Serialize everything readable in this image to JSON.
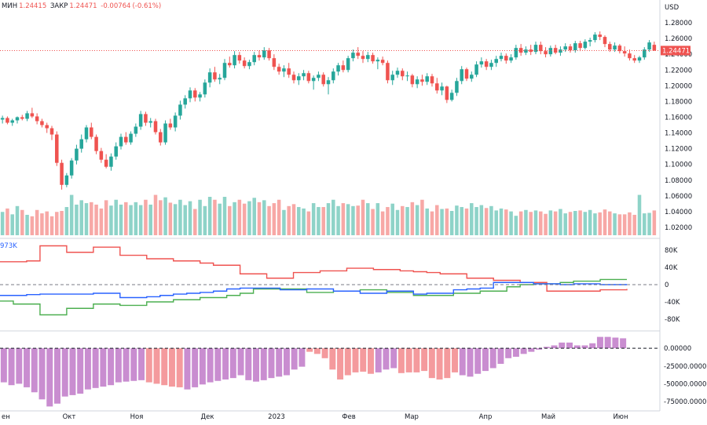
{
  "chart_data": {
    "type": "candlestick",
    "currency_label": "USD",
    "ohlc": {
      "low_label": "МИН",
      "low": "1.24415",
      "close_label": "ЗАКР",
      "close": "1.24471",
      "change": "-0.00764",
      "change_pct": "(-0.61%)"
    },
    "price_badge": "1.24471",
    "price_ticks": [
      "1.28000",
      "1.26000",
      "1.24000",
      "1.22000",
      "1.20000",
      "1.18000",
      "1.16000",
      "1.14000",
      "1.12000",
      "1.10000",
      "1.08000",
      "1.06000",
      "1.04000",
      "1.02000"
    ],
    "cot_ticks": [
      "80K",
      "40K",
      "0",
      "-40K",
      "-80K"
    ],
    "cot_legend": "973K",
    "net_ticks": [
      "0.00000",
      "-25000.00000",
      "-50000.00000",
      "-75000.00000"
    ],
    "x_labels": [
      "ен",
      "Окт",
      "Ноя",
      "Дек",
      "2023",
      "Фев",
      "Мар",
      "Апр",
      "Май",
      "Июн"
    ],
    "ylim_price": [
      1.01,
      1.291
    ],
    "ylim_cot": [
      -100,
      100
    ],
    "ylim_net": [
      -86000,
      20000
    ],
    "candles": [
      [
        1.157,
        1.162,
        1.152,
        1.159
      ],
      [
        1.159,
        1.161,
        1.151,
        1.153
      ],
      [
        1.153,
        1.158,
        1.149,
        1.156
      ],
      [
        1.156,
        1.161,
        1.152,
        1.16
      ],
      [
        1.16,
        1.163,
        1.156,
        1.158
      ],
      [
        1.158,
        1.168,
        1.155,
        1.165
      ],
      [
        1.165,
        1.172,
        1.159,
        1.161
      ],
      [
        1.161,
        1.165,
        1.151,
        1.155
      ],
      [
        1.155,
        1.158,
        1.147,
        1.15
      ],
      [
        1.15,
        1.153,
        1.14,
        1.146
      ],
      [
        1.146,
        1.149,
        1.131,
        1.138
      ],
      [
        1.138,
        1.142,
        1.098,
        1.102
      ],
      [
        1.102,
        1.106,
        1.068,
        1.074
      ],
      [
        1.074,
        1.089,
        1.071,
        1.086
      ],
      [
        1.086,
        1.108,
        1.082,
        1.105
      ],
      [
        1.105,
        1.125,
        1.1,
        1.12
      ],
      [
        1.12,
        1.138,
        1.115,
        1.132
      ],
      [
        1.132,
        1.15,
        1.128,
        1.147
      ],
      [
        1.147,
        1.153,
        1.132,
        1.135
      ],
      [
        1.135,
        1.138,
        1.113,
        1.117
      ],
      [
        1.117,
        1.121,
        1.102,
        1.106
      ],
      [
        1.106,
        1.113,
        1.095,
        1.097
      ],
      [
        1.097,
        1.114,
        1.092,
        1.11
      ],
      [
        1.11,
        1.128,
        1.106,
        1.123
      ],
      [
        1.123,
        1.139,
        1.119,
        1.135
      ],
      [
        1.135,
        1.141,
        1.125,
        1.128
      ],
      [
        1.128,
        1.142,
        1.125,
        1.139
      ],
      [
        1.139,
        1.152,
        1.135,
        1.148
      ],
      [
        1.148,
        1.168,
        1.144,
        1.164
      ],
      [
        1.164,
        1.167,
        1.149,
        1.153
      ],
      [
        1.153,
        1.159,
        1.147,
        1.155
      ],
      [
        1.155,
        1.158,
        1.138,
        1.141
      ],
      [
        1.141,
        1.145,
        1.124,
        1.128
      ],
      [
        1.128,
        1.156,
        1.125,
        1.152
      ],
      [
        1.152,
        1.158,
        1.144,
        1.147
      ],
      [
        1.147,
        1.166,
        1.142,
        1.162
      ],
      [
        1.162,
        1.181,
        1.157,
        1.176
      ],
      [
        1.176,
        1.188,
        1.171,
        1.184
      ],
      [
        1.184,
        1.198,
        1.179,
        1.194
      ],
      [
        1.194,
        1.197,
        1.18,
        1.185
      ],
      [
        1.185,
        1.192,
        1.18,
        1.189
      ],
      [
        1.189,
        1.208,
        1.185,
        1.204
      ],
      [
        1.204,
        1.222,
        1.198,
        1.217
      ],
      [
        1.217,
        1.224,
        1.205,
        1.208
      ],
      [
        1.208,
        1.215,
        1.202,
        1.21
      ],
      [
        1.21,
        1.234,
        1.207,
        1.229
      ],
      [
        1.229,
        1.237,
        1.223,
        1.226
      ],
      [
        1.226,
        1.244,
        1.222,
        1.239
      ],
      [
        1.239,
        1.243,
        1.228,
        1.232
      ],
      [
        1.232,
        1.236,
        1.222,
        1.225
      ],
      [
        1.225,
        1.233,
        1.221,
        1.23
      ],
      [
        1.23,
        1.243,
        1.226,
        1.239
      ],
      [
        1.239,
        1.245,
        1.232,
        1.236
      ],
      [
        1.236,
        1.249,
        1.233,
        1.245
      ],
      [
        1.245,
        1.248,
        1.232,
        1.235
      ],
      [
        1.235,
        1.24,
        1.22,
        1.224
      ],
      [
        1.224,
        1.228,
        1.214,
        1.218
      ],
      [
        1.218,
        1.226,
        1.211,
        1.222
      ],
      [
        1.222,
        1.229,
        1.21,
        1.214
      ],
      [
        1.214,
        1.218,
        1.203,
        1.207
      ],
      [
        1.207,
        1.216,
        1.201,
        1.212
      ],
      [
        1.212,
        1.22,
        1.207,
        1.216
      ],
      [
        1.216,
        1.219,
        1.203,
        1.206
      ],
      [
        1.206,
        1.213,
        1.195,
        1.21
      ],
      [
        1.21,
        1.218,
        1.206,
        1.214
      ],
      [
        1.214,
        1.217,
        1.199,
        1.202
      ],
      [
        1.202,
        1.211,
        1.189,
        1.207
      ],
      [
        1.207,
        1.222,
        1.203,
        1.218
      ],
      [
        1.218,
        1.229,
        1.213,
        1.226
      ],
      [
        1.226,
        1.232,
        1.217,
        1.22
      ],
      [
        1.22,
        1.238,
        1.217,
        1.235
      ],
      [
        1.235,
        1.246,
        1.231,
        1.242
      ],
      [
        1.242,
        1.249,
        1.234,
        1.238
      ],
      [
        1.238,
        1.244,
        1.229,
        1.234
      ],
      [
        1.234,
        1.243,
        1.23,
        1.239
      ],
      [
        1.239,
        1.242,
        1.228,
        1.231
      ],
      [
        1.231,
        1.236,
        1.221,
        1.233
      ],
      [
        1.233,
        1.237,
        1.226,
        1.229
      ],
      [
        1.229,
        1.232,
        1.203,
        1.207
      ],
      [
        1.207,
        1.219,
        1.201,
        1.214
      ],
      [
        1.214,
        1.223,
        1.21,
        1.219
      ],
      [
        1.219,
        1.222,
        1.207,
        1.212
      ],
      [
        1.212,
        1.218,
        1.206,
        1.213
      ],
      [
        1.213,
        1.215,
        1.198,
        1.202
      ],
      [
        1.202,
        1.212,
        1.197,
        1.208
      ],
      [
        1.208,
        1.214,
        1.2,
        1.205
      ],
      [
        1.205,
        1.216,
        1.201,
        1.212
      ],
      [
        1.212,
        1.215,
        1.199,
        1.203
      ],
      [
        1.203,
        1.21,
        1.19,
        1.194
      ],
      [
        1.194,
        1.204,
        1.188,
        1.199
      ],
      [
        1.199,
        1.2,
        1.178,
        1.182
      ],
      [
        1.182,
        1.195,
        1.18,
        1.191
      ],
      [
        1.191,
        1.21,
        1.187,
        1.206
      ],
      [
        1.206,
        1.225,
        1.202,
        1.221
      ],
      [
        1.221,
        1.223,
        1.206,
        1.209
      ],
      [
        1.209,
        1.218,
        1.205,
        1.214
      ],
      [
        1.214,
        1.231,
        1.211,
        1.227
      ],
      [
        1.227,
        1.236,
        1.223,
        1.231
      ],
      [
        1.231,
        1.234,
        1.22,
        1.224
      ],
      [
        1.224,
        1.233,
        1.22,
        1.229
      ],
      [
        1.229,
        1.238,
        1.224,
        1.234
      ],
      [
        1.234,
        1.242,
        1.231,
        1.238
      ],
      [
        1.238,
        1.241,
        1.228,
        1.232
      ],
      [
        1.232,
        1.24,
        1.229,
        1.236
      ],
      [
        1.236,
        1.252,
        1.233,
        1.248
      ],
      [
        1.248,
        1.253,
        1.238,
        1.242
      ],
      [
        1.242,
        1.25,
        1.239,
        1.246
      ],
      [
        1.246,
        1.252,
        1.239,
        1.243
      ],
      [
        1.243,
        1.256,
        1.24,
        1.252
      ],
      [
        1.252,
        1.256,
        1.24,
        1.244
      ],
      [
        1.244,
        1.249,
        1.236,
        1.24
      ],
      [
        1.24,
        1.251,
        1.237,
        1.248
      ],
      [
        1.248,
        1.252,
        1.24,
        1.242
      ],
      [
        1.242,
        1.25,
        1.238,
        1.246
      ],
      [
        1.246,
        1.254,
        1.243,
        1.25
      ],
      [
        1.25,
        1.253,
        1.242,
        1.245
      ],
      [
        1.245,
        1.257,
        1.242,
        1.254
      ],
      [
        1.254,
        1.257,
        1.244,
        1.248
      ],
      [
        1.248,
        1.259,
        1.246,
        1.256
      ],
      [
        1.256,
        1.261,
        1.25,
        1.258
      ],
      [
        1.258,
        1.268,
        1.255,
        1.265
      ],
      [
        1.265,
        1.269,
        1.258,
        1.262
      ],
      [
        1.262,
        1.264,
        1.249,
        1.253
      ],
      [
        1.253,
        1.256,
        1.243,
        1.246
      ],
      [
        1.246,
        1.255,
        1.243,
        1.251
      ],
      [
        1.251,
        1.253,
        1.241,
        1.244
      ],
      [
        1.244,
        1.25,
        1.237,
        1.241
      ],
      [
        1.241,
        1.246,
        1.232,
        1.235
      ],
      [
        1.235,
        1.239,
        1.229,
        1.232
      ],
      [
        1.232,
        1.238,
        1.229,
        1.236
      ],
      [
        1.236,
        1.249,
        1.233,
        1.246
      ],
      [
        1.246,
        1.258,
        1.243,
        1.255
      ],
      [
        1.252,
        1.256,
        1.2442,
        1.2447
      ]
    ],
    "volumes": [
      48,
      55,
      43,
      60,
      52,
      42,
      39,
      52,
      45,
      49,
      39,
      48,
      50,
      58,
      83,
      63,
      72,
      66,
      68,
      63,
      55,
      72,
      61,
      73,
      63,
      68,
      62,
      68,
      62,
      73,
      63,
      83,
      72,
      78,
      67,
      64,
      73,
      62,
      70,
      54,
      73,
      60,
      79,
      73,
      65,
      79,
      60,
      68,
      73,
      65,
      70,
      77,
      68,
      72,
      60,
      66,
      73,
      52,
      60,
      64,
      58,
      55,
      49,
      66,
      58,
      58,
      66,
      73,
      60,
      66,
      64,
      60,
      61,
      73,
      66,
      54,
      66,
      49,
      58,
      65,
      52,
      60,
      58,
      68,
      62,
      73,
      55,
      49,
      62,
      54,
      55,
      50,
      61,
      58,
      55,
      66,
      58,
      62,
      56,
      60,
      51,
      55,
      53,
      49,
      40,
      49,
      52,
      48,
      51,
      49,
      44,
      51,
      49,
      54,
      45,
      48,
      50,
      51,
      48,
      52,
      45,
      47,
      53,
      49,
      45,
      43,
      43,
      47,
      42,
      83,
      45,
      46,
      51,
      48,
      45,
      50
    ],
    "cot_red": [
      53,
      53,
      55,
      90,
      90,
      75,
      75,
      87,
      87,
      68,
      68,
      60,
      60,
      55,
      55,
      50,
      45,
      45,
      25,
      25,
      15,
      15,
      28,
      28,
      32,
      32,
      38,
      38,
      35,
      35,
      32,
      30,
      28,
      25,
      25,
      15,
      15,
      10,
      10,
      5,
      5,
      -15,
      -15,
      -15,
      -15,
      -12,
      -12,
      -10
    ],
    "cot_blue": [
      -25,
      -25,
      -23,
      -22,
      -22,
      -22,
      -22,
      -20,
      -20,
      -30,
      -30,
      -28,
      -25,
      -22,
      -20,
      -18,
      -15,
      -10,
      -8,
      -8,
      -8,
      -12,
      -12,
      -10,
      -10,
      -15,
      -15,
      -20,
      -20,
      -15,
      -15,
      -22,
      -20,
      -20,
      -12,
      -10,
      -8,
      5,
      5,
      5,
      2,
      2,
      0,
      2,
      2,
      0,
      0,
      0
    ],
    "cot_green": [
      -38,
      -45,
      -45,
      -70,
      -70,
      -55,
      -55,
      -45,
      -45,
      -48,
      -48,
      -40,
      -40,
      -35,
      -35,
      -30,
      -30,
      -25,
      -20,
      -10,
      -10,
      -10,
      -10,
      -18,
      -18,
      -15,
      -15,
      -12,
      -12,
      -18,
      -18,
      -25,
      -25,
      -25,
      -20,
      -20,
      -15,
      -15,
      -5,
      0,
      2,
      2,
      5,
      8,
      8,
      12,
      12,
      12
    ],
    "net_values": [
      -48000,
      -52000,
      -50000,
      -55000,
      -62000,
      -72000,
      -82000,
      -78000,
      -68000,
      -66000,
      -64000,
      -58000,
      -56000,
      -54000,
      -52000,
      -48000,
      -47000,
      -46000,
      -45000,
      -48000,
      -50000,
      -52000,
      -54000,
      -55000,
      -58000,
      -55000,
      -51000,
      -48000,
      -46000,
      -44000,
      -42000,
      -38000,
      -45000,
      -47000,
      -45000,
      -42000,
      -40000,
      -38000,
      -30000,
      -26000,
      -5000,
      -8000,
      -14000,
      -30000,
      -44000,
      -38000,
      -34000,
      -33000,
      -36000,
      -34000,
      -30000,
      -28000,
      -35000,
      -34000,
      -34000,
      -32000,
      -42000,
      -44000,
      -42000,
      -34000,
      -38000,
      -40000,
      -36000,
      -32000,
      -28000,
      -22000,
      -14000,
      -12000,
      -8000,
      -5000,
      -2000,
      2000,
      4000,
      8000,
      8000,
      4000,
      4000,
      7000,
      16000,
      16000,
      15000,
      14000
    ],
    "net_colors": [
      "p",
      "p",
      "p",
      "p",
      "p",
      "p",
      "p",
      "p",
      "p",
      "p",
      "p",
      "p",
      "p",
      "p",
      "p",
      "p",
      "p",
      "p",
      "p",
      "r",
      "r",
      "r",
      "r",
      "r",
      "p",
      "p",
      "p",
      "p",
      "p",
      "p",
      "p",
      "p",
      "p",
      "p",
      "p",
      "p",
      "p",
      "p",
      "p",
      "p",
      "r",
      "r",
      "r",
      "r",
      "r",
      "r",
      "r",
      "r",
      "r",
      "p",
      "p",
      "p",
      "r",
      "r",
      "r",
      "r",
      "r",
      "r",
      "r",
      "r",
      "p",
      "p",
      "p",
      "p",
      "p",
      "p",
      "p",
      "p",
      "p",
      "p",
      "p",
      "p",
      "p",
      "p",
      "p",
      "p",
      "p",
      "p",
      "p",
      "p",
      "p",
      "p"
    ]
  }
}
